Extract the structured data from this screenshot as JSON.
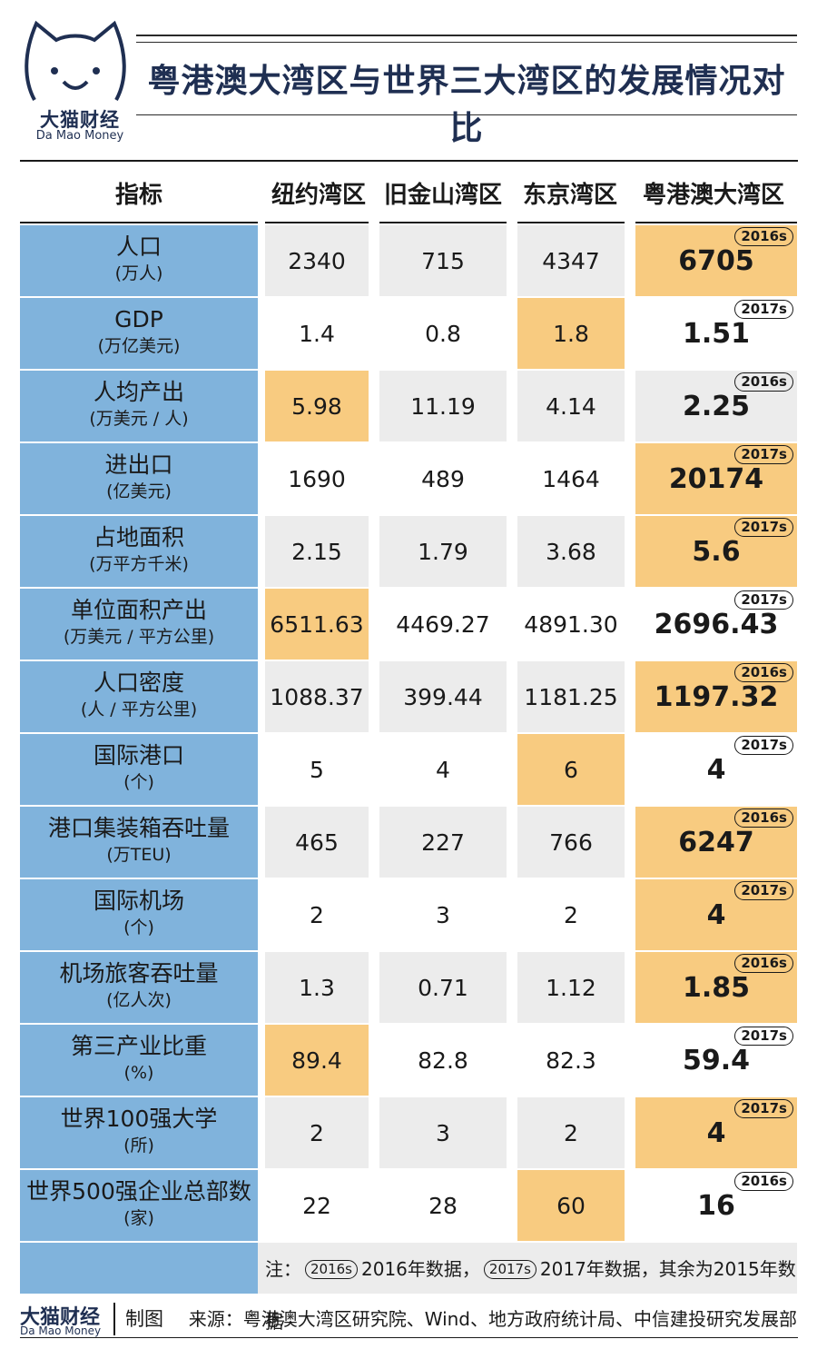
{
  "logo": {
    "cn": "大猫财经",
    "en": "Da Mao Money"
  },
  "title": "粤港澳大湾区与世界三大湾区的发展情况对比",
  "headers": [
    "指标",
    "纽约湾区",
    "旧金山湾区",
    "东京湾区",
    "粤港澳大湾区"
  ],
  "rows": [
    {
      "label": "人口",
      "unit": "(万人)",
      "values": [
        "2340",
        "715",
        "4347",
        "6705"
      ],
      "highlight": 3,
      "badge": "2016s"
    },
    {
      "label": "GDP",
      "unit": "(万亿美元)",
      "values": [
        "1.4",
        "0.8",
        "1.8",
        "1.51"
      ],
      "highlight": 2,
      "badge": "2017s"
    },
    {
      "label": "人均产出",
      "unit": "(万美元 / 人)",
      "values": [
        "5.98",
        "11.19",
        "4.14",
        "2.25"
      ],
      "highlight": 0,
      "badge": "2016s"
    },
    {
      "label": "进出口",
      "unit": "(亿美元)",
      "values": [
        "1690",
        "489",
        "1464",
        "20174"
      ],
      "highlight": 3,
      "badge": "2017s"
    },
    {
      "label": "占地面积",
      "unit": "(万平方千米)",
      "values": [
        "2.15",
        "1.79",
        "3.68",
        "5.6"
      ],
      "highlight": 3,
      "badge": "2017s"
    },
    {
      "label": "单位面积产出",
      "unit": "(万美元 / 平方公里)",
      "values": [
        "6511.63",
        "4469.27",
        "4891.30",
        "2696.43"
      ],
      "highlight": 0,
      "badge": "2017s"
    },
    {
      "label": "人口密度",
      "unit": "(人 / 平方公里)",
      "values": [
        "1088.37",
        "399.44",
        "1181.25",
        "1197.32"
      ],
      "highlight": 3,
      "badge": "2016s"
    },
    {
      "label": "国际港口",
      "unit": "(个)",
      "values": [
        "5",
        "4",
        "6",
        "4"
      ],
      "highlight": 2,
      "badge": "2017s"
    },
    {
      "label": "港口集装箱吞吐量",
      "unit": "(万TEU)",
      "values": [
        "465",
        "227",
        "766",
        "6247"
      ],
      "highlight": 3,
      "badge": "2016s"
    },
    {
      "label": "国际机场",
      "unit": "(个)",
      "values": [
        "2",
        "3",
        "2",
        "4"
      ],
      "highlight": 3,
      "badge": "2017s"
    },
    {
      "label": "机场旅客吞吐量",
      "unit": "(亿人次)",
      "values": [
        "1.3",
        "0.71",
        "1.12",
        "1.85"
      ],
      "highlight": 3,
      "badge": "2016s"
    },
    {
      "label": "第三产业比重",
      "unit": "(%)",
      "values": [
        "89.4",
        "82.8",
        "82.3",
        "59.4"
      ],
      "highlight": 0,
      "badge": "2017s"
    },
    {
      "label": "世界100强大学",
      "unit": "(所)",
      "values": [
        "2",
        "3",
        "2",
        "4"
      ],
      "highlight": 3,
      "badge": "2017s"
    },
    {
      "label": "世界500强企业总部数",
      "unit": "(家)",
      "values": [
        "22",
        "28",
        "60",
        "16"
      ],
      "highlight": 2,
      "badge": "2016s"
    }
  ],
  "note": {
    "prefix": "注：",
    "badge1": "2016s",
    "text1": "2016年数据，",
    "badge2": "2017s",
    "text2": "2017年数据，其余为2015年数据"
  },
  "footer": {
    "logo_cn": "大猫财经",
    "logo_en": "Da Mao Money",
    "made": "制图",
    "source": "来源：粤港澳大湾区研究院、Wind、地方政府统计局、中信建投研究发展部"
  },
  "colors": {
    "label_bg": "#80b3dc",
    "highlight": "#f8cb80",
    "gray": "#ececec",
    "brand": "#1f2f52"
  }
}
